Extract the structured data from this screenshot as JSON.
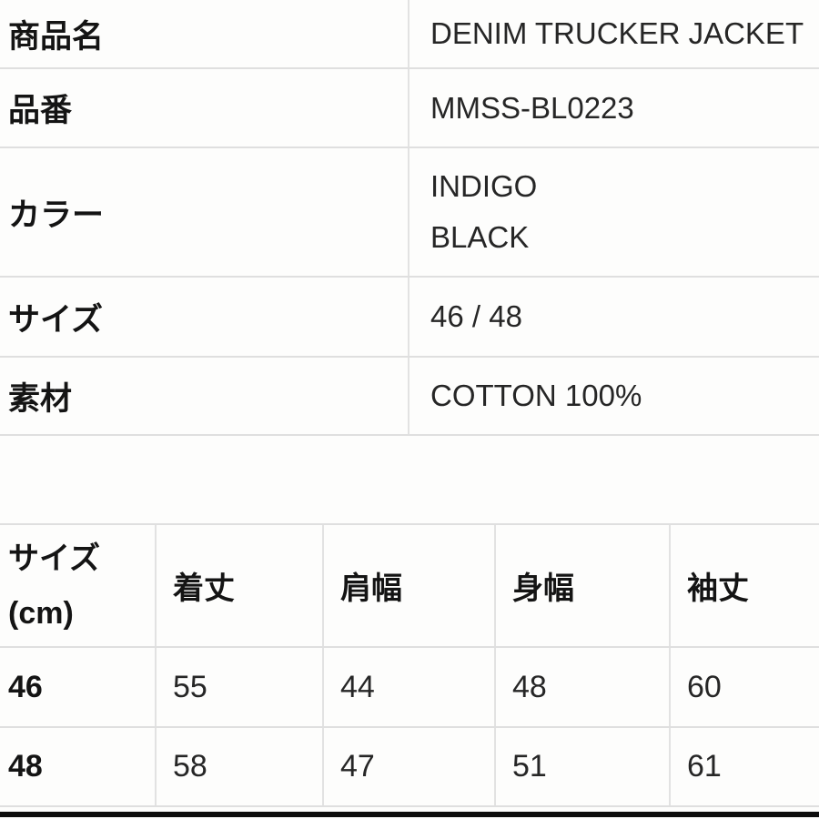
{
  "spec_table": {
    "rows": [
      {
        "label": "商品名",
        "value_lines": [
          "DENIM TRUCKER JACKET"
        ]
      },
      {
        "label": "品番",
        "value_lines": [
          "MMSS-BL0223"
        ]
      },
      {
        "label": "カラー",
        "value_lines": [
          "INDIGO",
          "BLACK"
        ]
      },
      {
        "label": "サイズ",
        "value_lines": [
          "46 / 48"
        ]
      },
      {
        "label": "素材",
        "value_lines": [
          "COTTON 100%"
        ]
      }
    ]
  },
  "size_chart": {
    "header": {
      "size_line1": "サイズ",
      "size_line2": "(cm)",
      "columns": [
        "着丈",
        "肩幅",
        "身幅",
        "袖丈"
      ]
    },
    "rows": [
      {
        "size": "46",
        "values": [
          "55",
          "44",
          "48",
          "60"
        ]
      },
      {
        "size": "48",
        "values": [
          "58",
          "47",
          "51",
          "61"
        ]
      }
    ]
  },
  "colors": {
    "border": "#dfdfdf",
    "label_text": "#141414",
    "value_text": "#262626",
    "background": "#fdfdfc",
    "bottom_bar": "#0c0c0c"
  }
}
